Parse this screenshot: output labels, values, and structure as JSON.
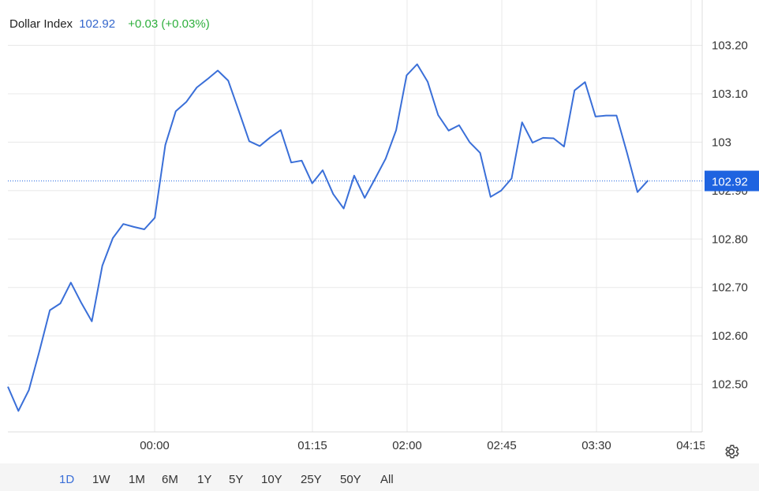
{
  "header": {
    "name": "Dollar Index",
    "last": "102.92",
    "change": "+0.03 (+0.03%)"
  },
  "colors": {
    "line": "#3a6fd8",
    "up": "#2eaf3c",
    "price_tag": "#1e63e0",
    "grid": "#e8e8e8"
  },
  "chart_data": {
    "type": "line",
    "series": [
      {
        "values": [
          102.495,
          102.445,
          102.488,
          102.568,
          102.653,
          102.667,
          102.71,
          102.668,
          102.63,
          102.745,
          102.802,
          102.831,
          102.825,
          102.82,
          102.844,
          102.994,
          103.064,
          103.083,
          103.113,
          103.13,
          103.148,
          103.127,
          103.065,
          103.002,
          102.992,
          103.01,
          103.025,
          102.958,
          102.962,
          102.915,
          102.942,
          102.893,
          102.863,
          102.931,
          102.885,
          102.925,
          102.966,
          103.025,
          103.138,
          103.161,
          103.125,
          103.056,
          103.024,
          103.035,
          103.0,
          102.978,
          102.887,
          102.9,
          102.925,
          103.041,
          102.999,
          103.009,
          103.008,
          102.991,
          103.107,
          103.124,
          103.053,
          103.055,
          103.055,
          102.978,
          102.897,
          102.921
        ]
      }
    ],
    "x_ticks": [
      "00:00",
      "01:15",
      "02:00",
      "02:45",
      "03:30",
      "04:15"
    ],
    "y_ticks": [
      "102.50",
      "102.60",
      "102.70",
      "102.80",
      "102.90",
      "103",
      "103.10",
      "103.20"
    ],
    "ylim": [
      102.4,
      103.22
    ],
    "last_price_label": "102.92",
    "grid": true
  },
  "range_buttons": [
    {
      "label": "1D",
      "active": true
    },
    {
      "label": "1W"
    },
    {
      "label": "1M"
    },
    {
      "label": "6M"
    },
    {
      "label": "1Y"
    },
    {
      "label": "5Y"
    },
    {
      "label": "10Y"
    },
    {
      "label": "25Y"
    },
    {
      "label": "50Y"
    },
    {
      "label": "All"
    }
  ]
}
